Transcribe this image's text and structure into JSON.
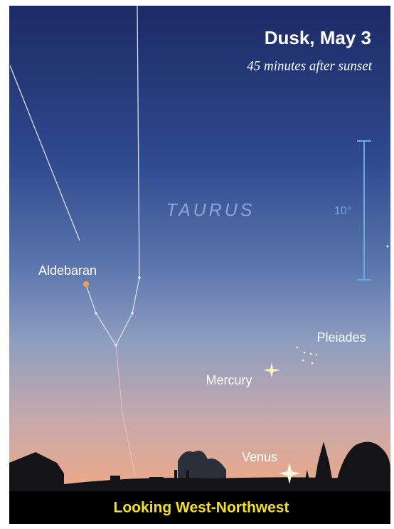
{
  "title": "Dusk, May 3",
  "subtitle": "45 minutes after sunset",
  "constellation": "TAURUS",
  "scale_label": "10°",
  "objects": [
    {
      "label": "Aldebaran"
    },
    {
      "label": "Pleiades"
    },
    {
      "label": "Mercury"
    },
    {
      "label": "Venus"
    }
  ],
  "footer": "Looking West-Northwest"
}
